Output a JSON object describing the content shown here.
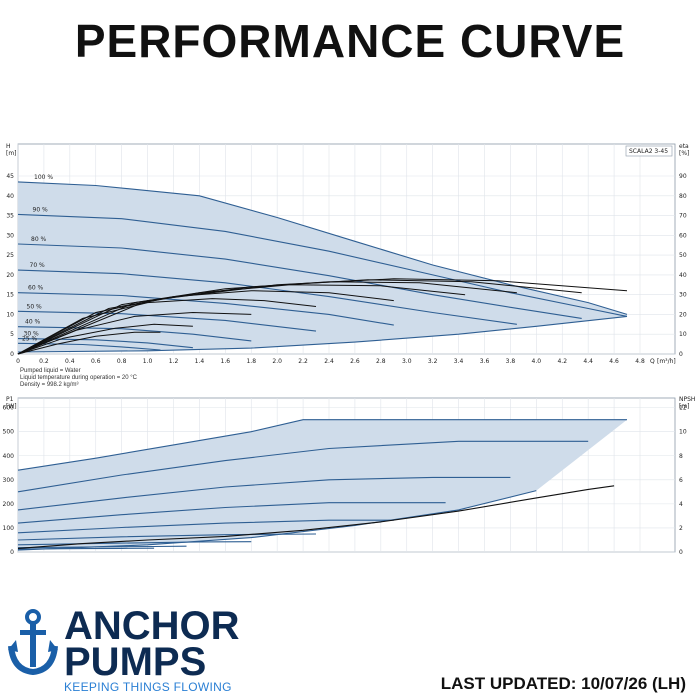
{
  "page": {
    "title": "PERFORMANCE CURVE",
    "last_updated": "LAST UPDATED: 10/07/26 (LH)"
  },
  "brand": {
    "name_line1": "ANCHOR",
    "name_line2": "PUMPS",
    "tagline": "KEEPING THINGS FLOWING",
    "color": "#0d2b52",
    "accent": "#2a7fd4"
  },
  "conditions": {
    "line1": "Pumped liquid = Water",
    "line2": "Liquid temperature during operation = 20 °C",
    "line3": "Density = 998.2 kg/m³"
  },
  "chart_data": [
    {
      "type": "line",
      "model": "SCALA2 3-45",
      "ylabel_left": "H",
      "yunit_left": "[m]",
      "ylabel_right": "eta",
      "yunit_right": "[%]",
      "xlabel": "Q",
      "xunit": "[m³/h]",
      "xlim": [
        0,
        4.8
      ],
      "xticks": [
        0,
        0.2,
        0.4,
        0.6,
        0.8,
        1.0,
        1.2,
        1.4,
        1.6,
        1.8,
        2.0,
        2.2,
        2.4,
        2.6,
        2.8,
        3.0,
        3.2,
        3.4,
        3.6,
        3.8,
        4.0,
        4.2,
        4.4,
        4.6,
        4.8
      ],
      "xtick_labels": [
        "0",
        "0.2",
        "0.4",
        "0.6",
        "0.8",
        "1.0",
        "1.2",
        "1.4",
        "1.6",
        "1.8",
        "2.0",
        "2.2",
        "2.4",
        "2.6",
        "2.8",
        "3.0",
        "3.2",
        "3.4",
        "3.6",
        "3.8",
        "4.0",
        "4.2",
        "4.4",
        "4.6",
        "4.8"
      ],
      "ylim_left": [
        0,
        45
      ],
      "yticks_left": [
        0,
        5,
        10,
        15,
        20,
        25,
        30,
        35,
        40,
        45
      ],
      "ylim_right": [
        0,
        90
      ],
      "yticks_right": [
        0,
        10,
        20,
        30,
        40,
        50,
        60,
        70,
        80,
        90
      ],
      "grid": true,
      "head_series": [
        {
          "label": "100 %",
          "points": [
            [
              0,
              43.5
            ],
            [
              0.6,
              42.6
            ],
            [
              1.4,
              40.0
            ],
            [
              2.0,
              34.5
            ],
            [
              2.6,
              28.5
            ],
            [
              3.2,
              22.5
            ],
            [
              3.8,
              17.5
            ],
            [
              4.4,
              13.0
            ],
            [
              4.7,
              10.0
            ]
          ]
        },
        {
          "label": "90 %",
          "points": [
            [
              0,
              35.3
            ],
            [
              0.8,
              34.2
            ],
            [
              1.6,
              31.0
            ],
            [
              2.4,
              26.0
            ],
            [
              3.2,
              20.0
            ],
            [
              3.8,
              15.5
            ],
            [
              4.4,
              11.5
            ],
            [
              4.7,
              9.5
            ]
          ]
        },
        {
          "label": "80 %",
          "points": [
            [
              0,
              27.8
            ],
            [
              0.8,
              26.8
            ],
            [
              1.6,
              24.0
            ],
            [
              2.4,
              19.8
            ],
            [
              3.2,
              15.0
            ],
            [
              3.8,
              11.8
            ],
            [
              4.35,
              9.0
            ]
          ]
        },
        {
          "label": "70 %",
          "points": [
            [
              0,
              21.2
            ],
            [
              0.8,
              20.3
            ],
            [
              1.6,
              18.0
            ],
            [
              2.4,
              14.5
            ],
            [
              3.2,
              10.5
            ],
            [
              3.85,
              7.5
            ]
          ]
        },
        {
          "label": "60 %",
          "points": [
            [
              0,
              15.5
            ],
            [
              0.8,
              14.8
            ],
            [
              1.6,
              12.8
            ],
            [
              2.4,
              10.0
            ],
            [
              2.9,
              7.3
            ]
          ]
        },
        {
          "label": "50 %",
          "points": [
            [
              0,
              10.8
            ],
            [
              0.8,
              10.2
            ],
            [
              1.6,
              8.5
            ],
            [
              2.3,
              5.8
            ]
          ]
        },
        {
          "label": "40 %",
          "points": [
            [
              0,
              6.9
            ],
            [
              0.8,
              6.4
            ],
            [
              1.35,
              5.0
            ],
            [
              1.8,
              3.3
            ]
          ]
        },
        {
          "label": "30 %",
          "points": [
            [
              0,
              3.9
            ],
            [
              0.6,
              3.6
            ],
            [
              1.0,
              2.8
            ],
            [
              1.35,
              1.6
            ]
          ]
        },
        {
          "label": "25 %",
          "points": [
            [
              0,
              2.7
            ],
            [
              0.5,
              2.4
            ],
            [
              0.8,
              1.8
            ],
            [
              1.1,
              1.0
            ]
          ]
        }
      ],
      "minimum_curve": [
        [
          0,
          0.5
        ],
        [
          1.0,
          0.8
        ],
        [
          1.8,
          1.5
        ],
        [
          2.6,
          3.0
        ],
        [
          3.4,
          5.0
        ],
        [
          4.0,
          7.0
        ],
        [
          4.7,
          9.5
        ]
      ],
      "efficiency_series": [
        {
          "points": [
            [
              0,
              0
            ],
            [
              0.5,
              18
            ],
            [
              1.0,
              26
            ],
            [
              1.5,
              28
            ],
            [
              1.9,
              27
            ],
            [
              2.3,
              24
            ]
          ]
        },
        {
          "points": [
            [
              0,
              0
            ],
            [
              0.6,
              21
            ],
            [
              1.2,
              29
            ],
            [
              1.8,
              32
            ],
            [
              2.4,
              31
            ],
            [
              2.9,
              27
            ]
          ]
        },
        {
          "points": [
            [
              0,
              0
            ],
            [
              0.7,
              23
            ],
            [
              1.4,
              31
            ],
            [
              2.1,
              35
            ],
            [
              2.8,
              34.5
            ],
            [
              3.45,
              30
            ]
          ]
        },
        {
          "points": [
            [
              0,
              0
            ],
            [
              0.8,
              25
            ],
            [
              1.6,
              33
            ],
            [
              2.4,
              36.5
            ],
            [
              3.1,
              36
            ],
            [
              3.85,
              31
            ]
          ]
        },
        {
          "points": [
            [
              0,
              0
            ],
            [
              0.9,
              26
            ],
            [
              1.8,
              34
            ],
            [
              2.7,
              37.5
            ],
            [
              3.5,
              36.5
            ],
            [
              4.35,
              31
            ]
          ]
        },
        {
          "points": [
            [
              0,
              0
            ],
            [
              1.0,
              27
            ],
            [
              2.0,
              35
            ],
            [
              2.9,
              38
            ],
            [
              3.7,
              37
            ],
            [
              4.7,
              32
            ]
          ]
        },
        {
          "points": [
            [
              0,
              0
            ],
            [
              0.3,
              5
            ],
            [
              0.6,
              9
            ],
            [
              0.9,
              11
            ],
            [
              1.1,
              11
            ]
          ]
        },
        {
          "points": [
            [
              0,
              0
            ],
            [
              0.35,
              8
            ],
            [
              0.75,
              13
            ],
            [
              1.05,
              15
            ],
            [
              1.35,
              14
            ]
          ]
        },
        {
          "points": [
            [
              0,
              0
            ],
            [
              0.45,
              12
            ],
            [
              0.9,
              19
            ],
            [
              1.35,
              21
            ],
            [
              1.8,
              20
            ]
          ]
        }
      ]
    },
    {
      "type": "line",
      "ylabel_left": "P1",
      "yunit_left": "[W]",
      "ylabel_right": "NPSH",
      "yunit_right": "[m]",
      "xlim": [
        0,
        4.8
      ],
      "ylim_left": [
        0,
        640
      ],
      "yticks_left": [
        0,
        100,
        200,
        300,
        400,
        500,
        600
      ],
      "ylim_right": [
        0,
        12.8
      ],
      "yticks_right": [
        0,
        2,
        4,
        6,
        8,
        10,
        12
      ],
      "grid": true,
      "power_series": [
        {
          "points": [
            [
              0,
              340
            ],
            [
              0.6,
              390
            ],
            [
              1.2,
              445
            ],
            [
              1.8,
              500
            ],
            [
              2.2,
              550
            ],
            [
              4.6,
              550
            ],
            [
              4.7,
              550
            ]
          ]
        },
        {
          "points": [
            [
              0,
              250
            ],
            [
              0.8,
              320
            ],
            [
              1.6,
              380
            ],
            [
              2.4,
              430
            ],
            [
              3.4,
              460
            ],
            [
              4.4,
              460
            ]
          ]
        },
        {
          "points": [
            [
              0,
              175
            ],
            [
              0.8,
              225
            ],
            [
              1.6,
              270
            ],
            [
              2.4,
              300
            ],
            [
              3.2,
              310
            ],
            [
              3.8,
              310
            ]
          ]
        },
        {
          "points": [
            [
              0,
              120
            ],
            [
              0.8,
              155
            ],
            [
              1.6,
              185
            ],
            [
              2.4,
              205
            ],
            [
              3.3,
              205
            ]
          ]
        },
        {
          "points": [
            [
              0,
              80
            ],
            [
              0.8,
              102
            ],
            [
              1.6,
              120
            ],
            [
              2.4,
              132
            ],
            [
              2.9,
              132
            ]
          ]
        },
        {
          "points": [
            [
              0,
              50
            ],
            [
              0.8,
              63
            ],
            [
              1.6,
              72
            ],
            [
              2.3,
              75
            ]
          ]
        },
        {
          "points": [
            [
              0,
              30
            ],
            [
              0.8,
              37
            ],
            [
              1.4,
              42
            ],
            [
              1.8,
              43
            ]
          ]
        },
        {
          "points": [
            [
              0,
              18
            ],
            [
              0.6,
              21
            ],
            [
              1.05,
              23
            ],
            [
              1.3,
              24
            ]
          ]
        },
        {
          "points": [
            [
              0,
              12
            ],
            [
              0.5,
              14
            ],
            [
              0.8,
              15
            ],
            [
              1.05,
              16
            ]
          ]
        }
      ],
      "power_minimum": [
        [
          0,
          8
        ],
        [
          1.0,
          30
        ],
        [
          1.8,
          60
        ],
        [
          2.6,
          110
        ],
        [
          3.4,
          175
        ],
        [
          4.0,
          255
        ],
        [
          4.7,
          550
        ]
      ],
      "npsh_curve": [
        [
          0,
          0.3
        ],
        [
          0.5,
          0.7
        ],
        [
          1.0,
          1.0
        ],
        [
          1.6,
          1.3
        ],
        [
          2.2,
          1.8
        ],
        [
          2.8,
          2.5
        ],
        [
          3.4,
          3.4
        ],
        [
          4.0,
          4.5
        ],
        [
          4.4,
          5.2
        ],
        [
          4.6,
          5.5
        ]
      ]
    }
  ]
}
